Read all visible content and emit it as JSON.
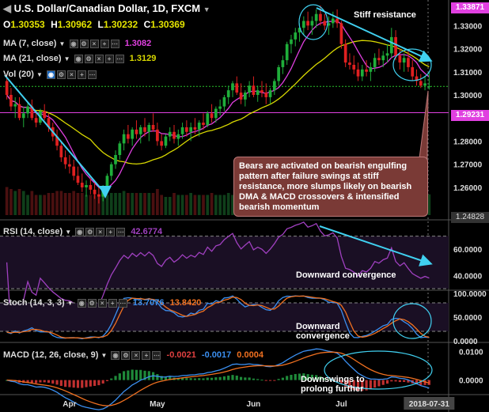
{
  "header": {
    "title": "U.S. Dollar/Canadian Dollar, 1D, FXCM",
    "open_label": "O",
    "open": "1.30353",
    "high_label": "H",
    "high": "1.30962",
    "low_label": "L",
    "low": "1.30232",
    "close_label": "C",
    "close": "1.30369"
  },
  "indicators": {
    "ma7": {
      "label": "MA (7, close)",
      "value": "1.3082",
      "color": "#e040e0"
    },
    "ma21": {
      "label": "MA (21, close)",
      "value": "1.3129",
      "color": "#d8d800"
    },
    "vol": {
      "label": "Vol (20)"
    },
    "rsi": {
      "label": "RSI (14, close)",
      "value": "42.6774",
      "color": "#a040c0"
    },
    "stoch": {
      "label": "Stoch (14, 3, 3)",
      "k": "13.7076",
      "d": "13.8420",
      "k_color": "#3b8ff0",
      "d_color": "#f07020"
    },
    "macd": {
      "label": "MACD (12, 26, close, 9)",
      "hist": "-0.0021",
      "macd": "-0.0017",
      "signal": "0.0004",
      "hist_color": "#e04040",
      "macd_color": "#3b8ff0",
      "signal_color": "#f07020"
    }
  },
  "annotations": {
    "stiff_resistance": "Stiff resistance",
    "callout": "Bears are activated on bearish engulfing pattern after failure swings at stiff resistance, more slumps likely on bearish DMA & MACD crossovers & intensified bearish momentum",
    "rsi_note": "Downward convergence",
    "stoch_note": "Downward convergence",
    "macd_note": "Downswings to prolong further"
  },
  "price_tags": {
    "top": "1.33871",
    "top_color": "#e040e0",
    "mid": "1.29231",
    "mid_color": "#e040e0",
    "last": "1.24828"
  },
  "colors": {
    "bull": "#1fae3a",
    "bear": "#e02020",
    "trend": "#40d0f0"
  },
  "chart_data": [
    {
      "type": "candlestick",
      "name": "price",
      "x": [
        "2018-03-12",
        "2018-03-13",
        "2018-03-14",
        "2018-03-15",
        "2018-03-16",
        "2018-03-19",
        "2018-03-20",
        "2018-03-21",
        "2018-03-22",
        "2018-03-23",
        "2018-03-26",
        "2018-03-27",
        "2018-03-28",
        "2018-03-29",
        "2018-03-30",
        "2018-04-02",
        "2018-04-03",
        "2018-04-04",
        "2018-04-05",
        "2018-04-06",
        "2018-04-09",
        "2018-04-10",
        "2018-04-11",
        "2018-04-12",
        "2018-04-13",
        "2018-04-16",
        "2018-04-17",
        "2018-04-18",
        "2018-04-19",
        "2018-04-20",
        "2018-04-23",
        "2018-04-24",
        "2018-04-25",
        "2018-04-26",
        "2018-04-27",
        "2018-04-30",
        "2018-05-01",
        "2018-05-02",
        "2018-05-03",
        "2018-05-04",
        "2018-05-07",
        "2018-05-08",
        "2018-05-09",
        "2018-05-10",
        "2018-05-11",
        "2018-05-14",
        "2018-05-15",
        "2018-05-16",
        "2018-05-17",
        "2018-05-18",
        "2018-05-21",
        "2018-05-22",
        "2018-05-23",
        "2018-05-24",
        "2018-05-25",
        "2018-05-28",
        "2018-05-29",
        "2018-05-30",
        "2018-05-31",
        "2018-06-01",
        "2018-06-04",
        "2018-06-05",
        "2018-06-06",
        "2018-06-07",
        "2018-06-08",
        "2018-06-11",
        "2018-06-12",
        "2018-06-13",
        "2018-06-14",
        "2018-06-15",
        "2018-06-18",
        "2018-06-19",
        "2018-06-20",
        "2018-06-21",
        "2018-06-22",
        "2018-06-25",
        "2018-06-26",
        "2018-06-27",
        "2018-06-28",
        "2018-06-29",
        "2018-07-02",
        "2018-07-03",
        "2018-07-04",
        "2018-07-05",
        "2018-07-06",
        "2018-07-09",
        "2018-07-10",
        "2018-07-11",
        "2018-07-12",
        "2018-07-13",
        "2018-07-16",
        "2018-07-17",
        "2018-07-18",
        "2018-07-19",
        "2018-07-20",
        "2018-07-23",
        "2018-07-24",
        "2018-07-25",
        "2018-07-26",
        "2018-07-27",
        "2018-07-30",
        "2018-07-31"
      ],
      "ohlc": [
        [
          1.306,
          1.309,
          1.298,
          1.3
        ],
        [
          1.3,
          1.303,
          1.293,
          1.295
        ],
        [
          1.295,
          1.299,
          1.29,
          1.296
        ],
        [
          1.296,
          1.299,
          1.289,
          1.29
        ],
        [
          1.29,
          1.295,
          1.286,
          1.292
        ],
        [
          1.292,
          1.297,
          1.29,
          1.295
        ],
        [
          1.295,
          1.298,
          1.289,
          1.29
        ],
        [
          1.29,
          1.293,
          1.286,
          1.288
        ],
        [
          1.288,
          1.294,
          1.287,
          1.293
        ],
        [
          1.293,
          1.296,
          1.289,
          1.29
        ],
        [
          1.29,
          1.292,
          1.284,
          1.286
        ],
        [
          1.286,
          1.288,
          1.28,
          1.282
        ],
        [
          1.282,
          1.285,
          1.276,
          1.278
        ],
        [
          1.278,
          1.28,
          1.271,
          1.273
        ],
        [
          1.273,
          1.276,
          1.268,
          1.27
        ],
        [
          1.27,
          1.274,
          1.266,
          1.269
        ],
        [
          1.269,
          1.272,
          1.263,
          1.265
        ],
        [
          1.265,
          1.269,
          1.261,
          1.262
        ],
        [
          1.262,
          1.266,
          1.258,
          1.26
        ],
        [
          1.26,
          1.263,
          1.256,
          1.261
        ],
        [
          1.261,
          1.264,
          1.257,
          1.259
        ],
        [
          1.259,
          1.262,
          1.255,
          1.257
        ],
        [
          1.257,
          1.26,
          1.253,
          1.256
        ],
        [
          1.256,
          1.261,
          1.254,
          1.26
        ],
        [
          1.26,
          1.266,
          1.259,
          1.265
        ],
        [
          1.265,
          1.271,
          1.263,
          1.27
        ],
        [
          1.27,
          1.276,
          1.268,
          1.274
        ],
        [
          1.274,
          1.28,
          1.272,
          1.279
        ],
        [
          1.279,
          1.285,
          1.276,
          1.283
        ],
        [
          1.283,
          1.287,
          1.279,
          1.281
        ],
        [
          1.281,
          1.286,
          1.278,
          1.285
        ],
        [
          1.285,
          1.289,
          1.281,
          1.283
        ],
        [
          1.283,
          1.287,
          1.279,
          1.286
        ],
        [
          1.286,
          1.29,
          1.282,
          1.284
        ],
        [
          1.284,
          1.288,
          1.28,
          1.287
        ],
        [
          1.287,
          1.292,
          1.284,
          1.285
        ],
        [
          1.285,
          1.288,
          1.278,
          1.28
        ],
        [
          1.28,
          1.283,
          1.276,
          1.278
        ],
        [
          1.278,
          1.283,
          1.277,
          1.282
        ],
        [
          1.282,
          1.286,
          1.28,
          1.284
        ],
        [
          1.284,
          1.287,
          1.279,
          1.281
        ],
        [
          1.281,
          1.285,
          1.278,
          1.283
        ],
        [
          1.283,
          1.288,
          1.281,
          1.286
        ],
        [
          1.286,
          1.289,
          1.282,
          1.284
        ],
        [
          1.284,
          1.288,
          1.28,
          1.286
        ],
        [
          1.286,
          1.29,
          1.283,
          1.285
        ],
        [
          1.285,
          1.289,
          1.282,
          1.288
        ],
        [
          1.288,
          1.292,
          1.285,
          1.287
        ],
        [
          1.287,
          1.293,
          1.286,
          1.292
        ],
        [
          1.292,
          1.296,
          1.288,
          1.29
        ],
        [
          1.29,
          1.295,
          1.288,
          1.294
        ],
        [
          1.294,
          1.298,
          1.291,
          1.295
        ],
        [
          1.295,
          1.3,
          1.293,
          1.299
        ],
        [
          1.299,
          1.304,
          1.296,
          1.302
        ],
        [
          1.302,
          1.306,
          1.299,
          1.305
        ],
        [
          1.305,
          1.308,
          1.3,
          1.301
        ],
        [
          1.301,
          1.305,
          1.296,
          1.298
        ],
        [
          1.298,
          1.302,
          1.295,
          1.301
        ],
        [
          1.301,
          1.306,
          1.299,
          1.304
        ],
        [
          1.304,
          1.308,
          1.299,
          1.3
        ],
        [
          1.3,
          1.304,
          1.297,
          1.302
        ],
        [
          1.302,
          1.306,
          1.299,
          1.301
        ],
        [
          1.301,
          1.305,
          1.296,
          1.299
        ],
        [
          1.299,
          1.303,
          1.296,
          1.302
        ],
        [
          1.302,
          1.307,
          1.3,
          1.306
        ],
        [
          1.306,
          1.313,
          1.304,
          1.312
        ],
        [
          1.312,
          1.317,
          1.309,
          1.315
        ],
        [
          1.315,
          1.323,
          1.313,
          1.322
        ],
        [
          1.322,
          1.326,
          1.318,
          1.324
        ],
        [
          1.324,
          1.329,
          1.321,
          1.327
        ],
        [
          1.327,
          1.331,
          1.323,
          1.329
        ],
        [
          1.329,
          1.334,
          1.326,
          1.332
        ],
        [
          1.332,
          1.336,
          1.328,
          1.33
        ],
        [
          1.33,
          1.334,
          1.326,
          1.332
        ],
        [
          1.332,
          1.337,
          1.329,
          1.335
        ],
        [
          1.335,
          1.3387,
          1.33,
          1.332
        ],
        [
          1.332,
          1.335,
          1.328,
          1.33
        ],
        [
          1.33,
          1.334,
          1.326,
          1.331
        ],
        [
          1.331,
          1.336,
          1.329,
          1.333
        ],
        [
          1.333,
          1.337,
          1.329,
          1.331
        ],
        [
          1.331,
          1.332,
          1.32,
          1.322
        ],
        [
          1.322,
          1.324,
          1.312,
          1.314
        ],
        [
          1.314,
          1.318,
          1.311,
          1.313
        ],
        [
          1.313,
          1.317,
          1.309,
          1.311
        ],
        [
          1.311,
          1.314,
          1.306,
          1.308
        ],
        [
          1.308,
          1.313,
          1.306,
          1.311
        ],
        [
          1.311,
          1.315,
          1.308,
          1.31
        ],
        [
          1.31,
          1.314,
          1.306,
          1.312
        ],
        [
          1.312,
          1.318,
          1.31,
          1.316
        ],
        [
          1.316,
          1.32,
          1.313,
          1.315
        ],
        [
          1.315,
          1.319,
          1.312,
          1.317
        ],
        [
          1.317,
          1.322,
          1.314,
          1.318
        ],
        [
          1.318,
          1.329,
          1.316,
          1.325
        ],
        [
          1.325,
          1.328,
          1.315,
          1.317
        ],
        [
          1.317,
          1.32,
          1.311,
          1.314
        ],
        [
          1.314,
          1.318,
          1.31,
          1.316
        ],
        [
          1.316,
          1.319,
          1.31,
          1.312
        ],
        [
          1.312,
          1.315,
          1.306,
          1.308
        ],
        [
          1.308,
          1.311,
          1.304,
          1.306
        ],
        [
          1.306,
          1.309,
          1.303,
          1.304
        ],
        [
          1.304,
          1.308,
          1.302,
          1.305
        ],
        [
          1.30353,
          1.30962,
          1.30232,
          1.30369
        ]
      ],
      "ylim": [
        1.248,
        1.339
      ],
      "y_ticks": [
        "1.33000",
        "1.32000",
        "1.31000",
        "1.30000",
        "1.28000",
        "1.27000",
        "1.26000"
      ],
      "x_tick_labels": [
        "Apr",
        "May",
        "Jun",
        "Jul",
        "2018-07-31"
      ],
      "x_tick_dates": [
        "2018-04-02",
        "2018-05-01",
        "2018-06-01",
        "2018-07-02",
        "2018-07-31"
      ]
    },
    {
      "type": "line",
      "name": "RSI",
      "ylim": [
        30,
        80
      ],
      "y_ticks": [
        "60.0000",
        "40.0000"
      ],
      "levels": [
        70,
        30
      ]
    },
    {
      "type": "line",
      "name": "Stoch",
      "ylim": [
        0,
        100
      ],
      "y_ticks": [
        "100.0000",
        "50.0000",
        "0.0000"
      ],
      "levels": [
        80,
        20
      ]
    },
    {
      "type": "histogram+line",
      "name": "MACD",
      "ylim": [
        -0.0045,
        0.012
      ],
      "y_ticks": [
        "0.0100",
        "0.0000"
      ]
    }
  ]
}
